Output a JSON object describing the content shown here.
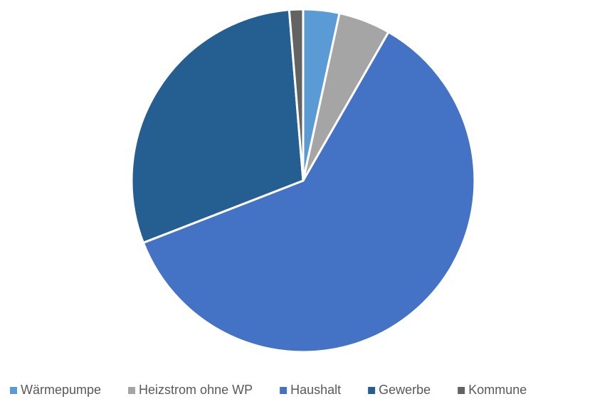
{
  "chart_data": {
    "type": "pie",
    "categories": [
      "Wärmepumpe",
      "Heizstrom ohne WP",
      "Haushalt",
      "Gewerbe",
      "Kommune"
    ],
    "values": [
      3.4,
      4.9,
      60.8,
      29.6,
      1.3
    ],
    "colors": [
      "#5b9bd5",
      "#a5a5a5",
      "#4472c4",
      "#255e91",
      "#636363"
    ],
    "legend": "bottom"
  }
}
